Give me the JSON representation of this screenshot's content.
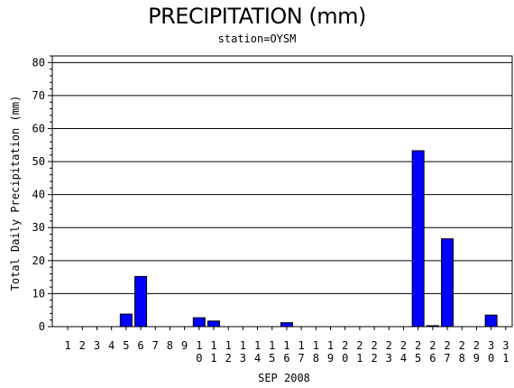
{
  "chart_data": {
    "type": "bar",
    "title": "PRECIPITATION (mm)",
    "subtitle": "station=OYSM",
    "xlabel": "SEP 2008",
    "ylabel": "Total Daily Precipitation (mm)",
    "ylim": [
      0,
      82
    ],
    "yticks": [
      0,
      10,
      20,
      30,
      40,
      50,
      60,
      70,
      80
    ],
    "grid": true,
    "bar_color": "#0000ff",
    "categories": [
      "1",
      "2",
      "3",
      "4",
      "5",
      "6",
      "7",
      "8",
      "9",
      "10",
      "11",
      "12",
      "13",
      "14",
      "15",
      "16",
      "17",
      "18",
      "19",
      "20",
      "21",
      "22",
      "23",
      "24",
      "25",
      "26",
      "27",
      "28",
      "29",
      "30",
      "31"
    ],
    "values": [
      0,
      0,
      0,
      0,
      3.8,
      15.2,
      0,
      0,
      0,
      2.7,
      1.7,
      0,
      0,
      0,
      0,
      1.2,
      0,
      0,
      0,
      0,
      0,
      0,
      0,
      0,
      53.3,
      0.3,
      26.6,
      0,
      0,
      3.5,
      0
    ]
  }
}
